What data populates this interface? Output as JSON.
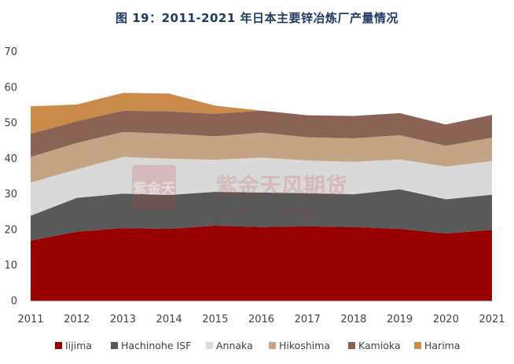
{
  "chart_data": {
    "type": "area",
    "stacked": true,
    "title": "图 19：2011-2021 年日本主要锌冶炼厂产量情况",
    "xlabel": "",
    "ylabel": "",
    "ylim": [
      0,
      70
    ],
    "yticks": [
      0,
      10,
      20,
      30,
      40,
      50,
      60,
      70
    ],
    "categories": [
      "2011",
      "2012",
      "2013",
      "2014",
      "2015",
      "2016",
      "2017",
      "2018",
      "2019",
      "2020",
      "2021"
    ],
    "grid": false,
    "legend_position": "bottom",
    "series": [
      {
        "name": "Iijima",
        "color": "#990000",
        "values": [
          17,
          19.5,
          20.5,
          20.3,
          21.2,
          20.8,
          21,
          20.8,
          20.3,
          19,
          20
        ]
      },
      {
        "name": "Hachinohe ISF",
        "color": "#595959",
        "values": [
          7,
          9.5,
          9.7,
          9.5,
          9.5,
          9.7,
          9.3,
          9.2,
          11.1,
          9.6,
          9.9
        ]
      },
      {
        "name": "Annaka",
        "color": "#d9d9d9",
        "values": [
          9.3,
          8,
          10.3,
          10.2,
          9,
          9.8,
          9.2,
          9.1,
          8.4,
          9.2,
          9.4
        ]
      },
      {
        "name": "Hikoshima",
        "color": "#c4a484",
        "values": [
          7.2,
          7.4,
          7,
          7,
          6.6,
          7,
          6.5,
          6.6,
          6.8,
          5.8,
          6.6
        ]
      },
      {
        "name": "Kamioka",
        "color": "#8b6355",
        "values": [
          6.5,
          6.1,
          6,
          6.3,
          6.3,
          6.2,
          6.2,
          6.3,
          6.2,
          6,
          6.4
        ]
      },
      {
        "name": "Harima",
        "color": "#c98a4a",
        "values": [
          7.7,
          4.7,
          5,
          5,
          2.3,
          0,
          0,
          0,
          0,
          0,
          0
        ]
      }
    ]
  },
  "watermark": {
    "logo_text": "紫金天",
    "company": "紫金天风期货",
    "slogan": "立 足 产 业   研 究 驱 动",
    "color": "#c0392b"
  }
}
